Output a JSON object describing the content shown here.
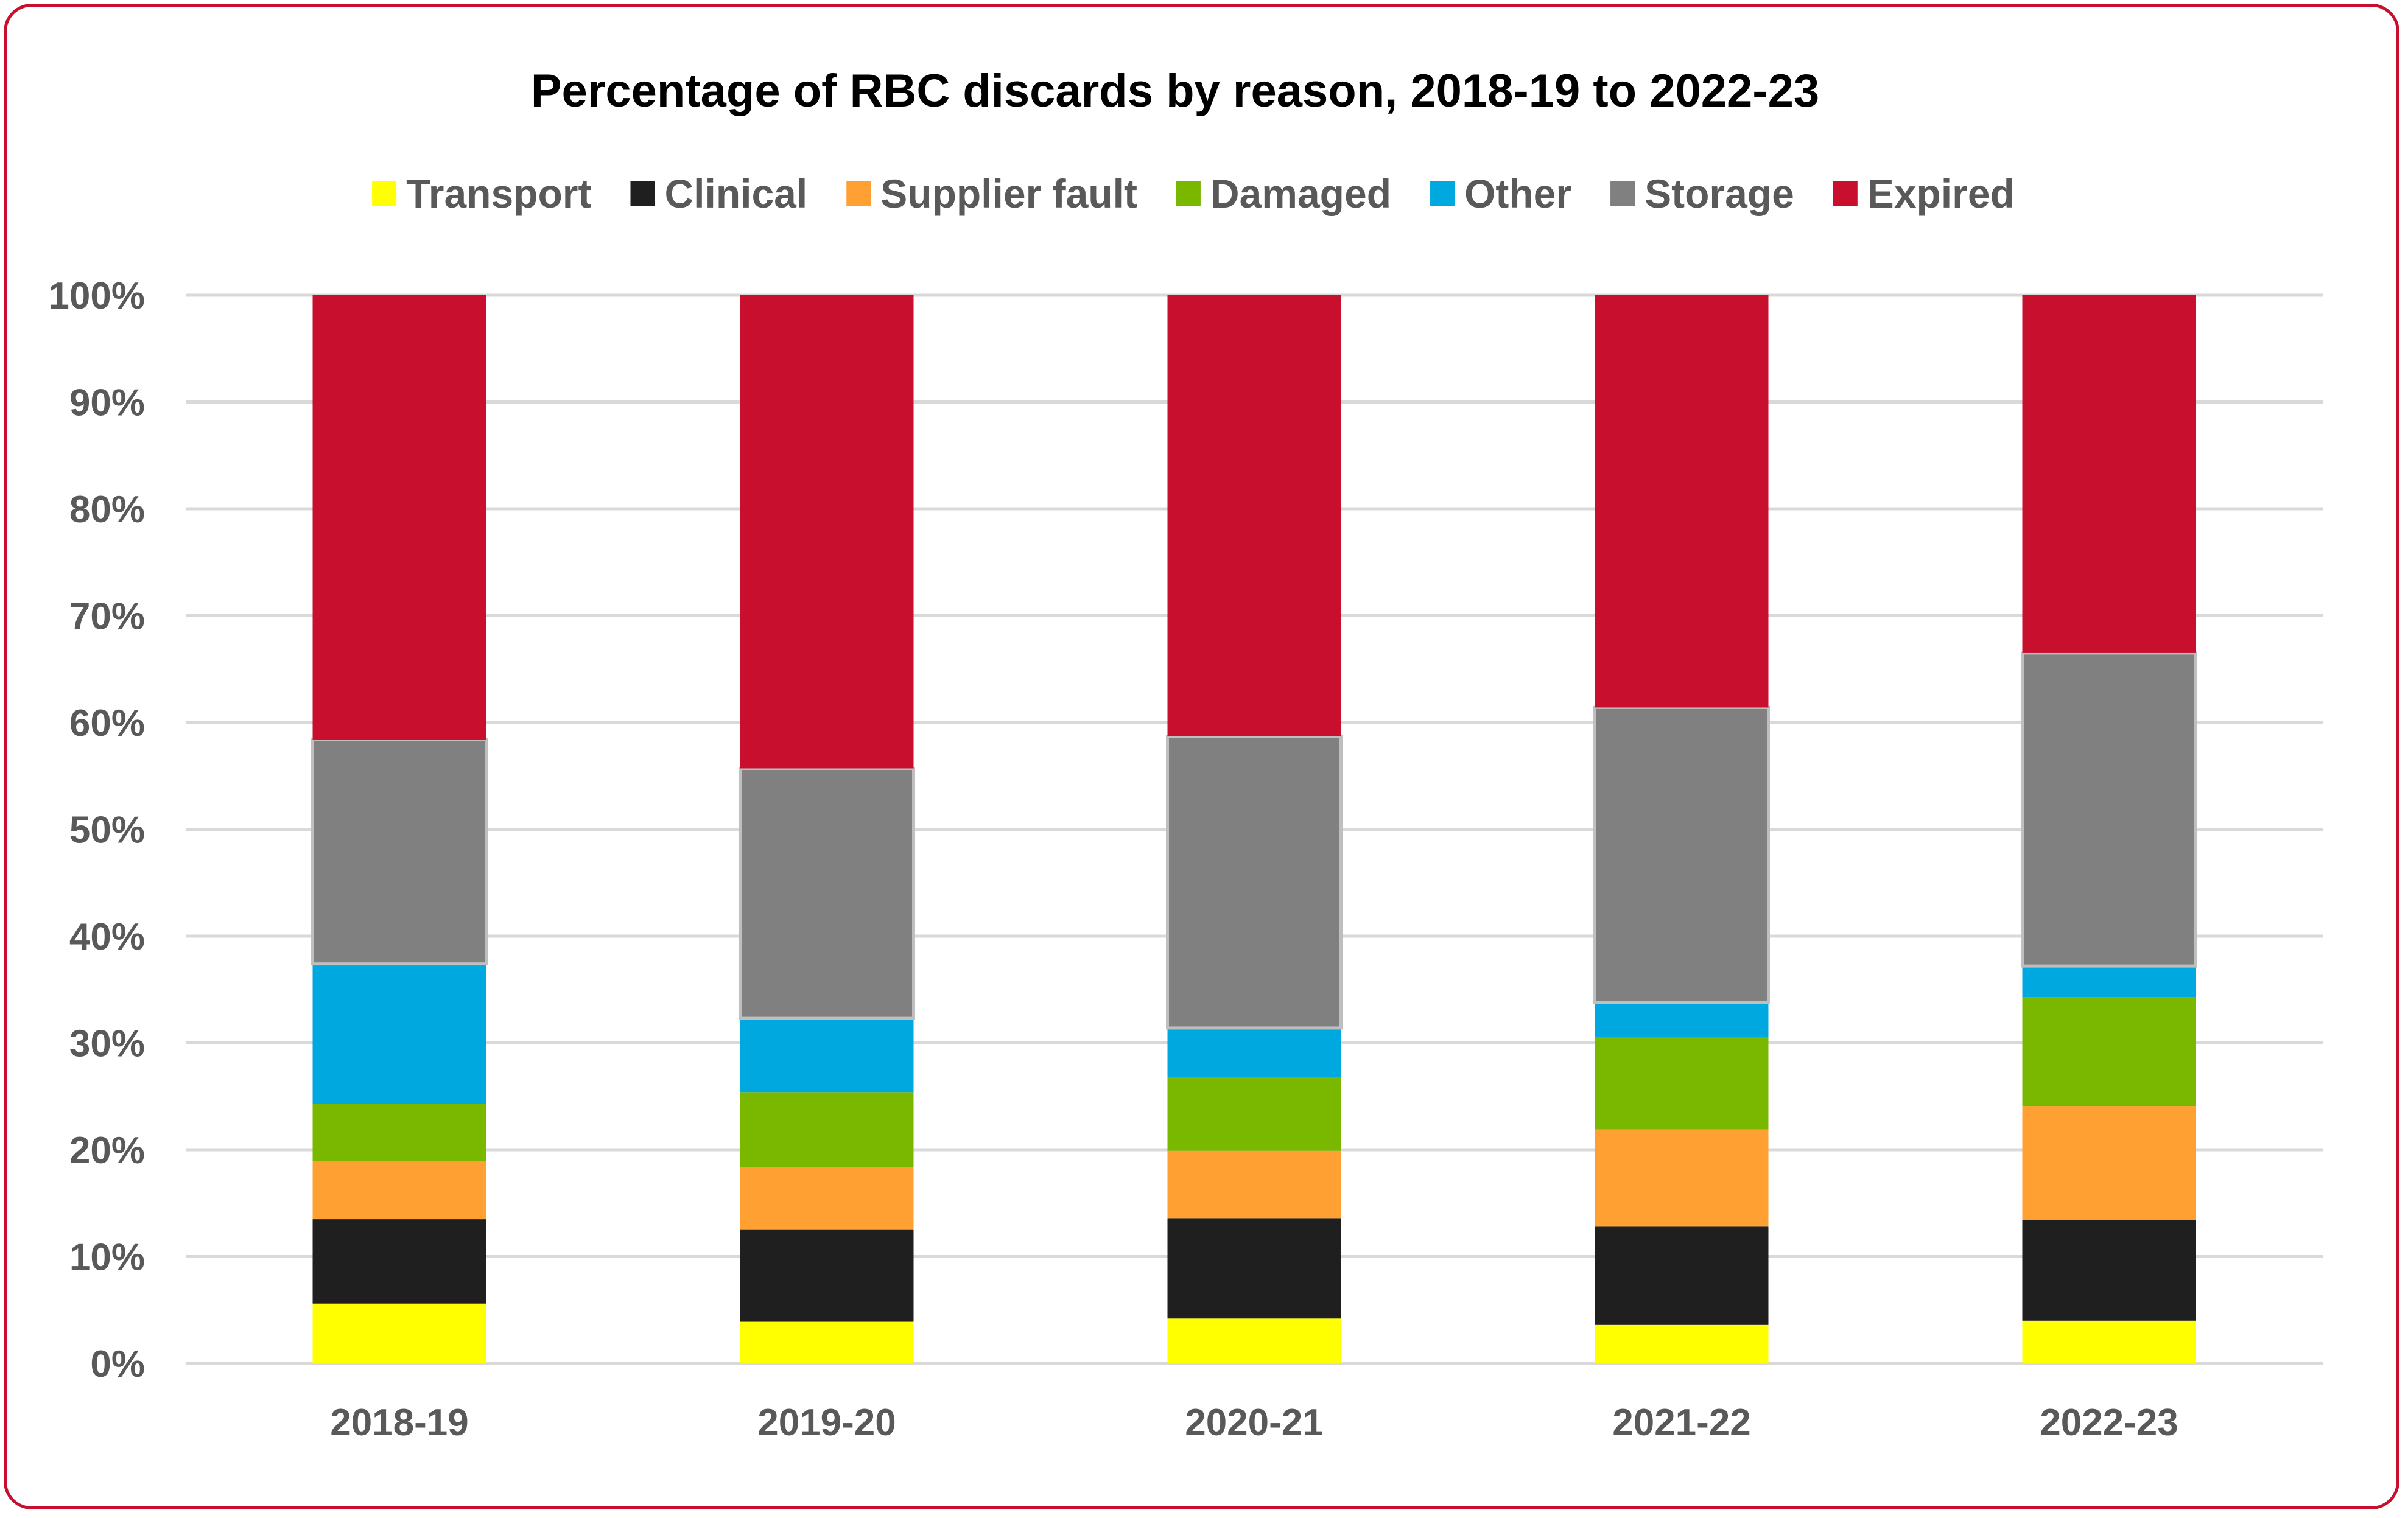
{
  "chart_data": {
    "type": "bar",
    "stacked": true,
    "title": "Percentage of RBC discards by reason, 2018-19 to 2022-23",
    "xlabel": "",
    "ylabel": "",
    "ylim": [
      0,
      100
    ],
    "yticks": [
      0,
      10,
      20,
      30,
      40,
      50,
      60,
      70,
      80,
      90,
      100
    ],
    "ytick_suffix": "%",
    "grid": true,
    "legend_position": "top",
    "categories": [
      "2018-19",
      "2019-20",
      "2020-21",
      "2021-22",
      "2022-23"
    ],
    "series": [
      {
        "name": "Transport",
        "color": "#FFFF00",
        "values": [
          5.6,
          3.9,
          4.2,
          3.6,
          4.0
        ]
      },
      {
        "name": "Clinical",
        "color": "#1F1F1F",
        "values": [
          7.9,
          8.6,
          9.4,
          9.2,
          9.4
        ]
      },
      {
        "name": "Supplier fault",
        "color": "#FFA033",
        "values": [
          5.4,
          5.9,
          6.3,
          9.1,
          10.7
        ]
      },
      {
        "name": "Damaged",
        "color": "#7AB800",
        "values": [
          5.4,
          7.0,
          6.9,
          8.6,
          10.2
        ]
      },
      {
        "name": "Other",
        "color": "#00A8E0",
        "values": [
          13.1,
          6.9,
          4.6,
          3.3,
          2.9
        ]
      },
      {
        "name": "Storage",
        "color": "#808080",
        "values": [
          21.0,
          23.4,
          27.3,
          27.6,
          29.3
        ]
      },
      {
        "name": "Expired",
        "color": "#C8102E",
        "values": [
          41.6,
          44.3,
          41.3,
          38.6,
          33.5
        ]
      }
    ]
  }
}
